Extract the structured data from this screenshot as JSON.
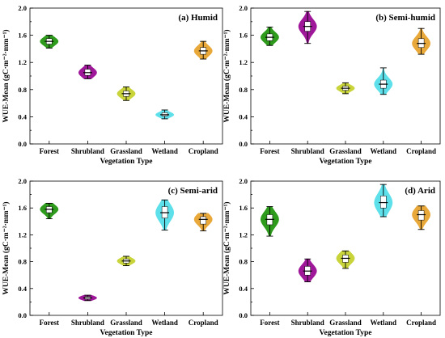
{
  "colors": {
    "Forest": "#2e9b1d",
    "Shrubland": "#a0189a",
    "Grassland": "#c8d43a",
    "Wetland": "#5ee0ea",
    "Cropland": "#e9a93a"
  },
  "chart_data": [
    {
      "type": "violin",
      "title": "(a) Humid",
      "xlabel": "Vegetation Type",
      "ylabel": "WUE-Mean (gC·m⁻²·mm⁻¹)",
      "ylim": [
        0.0,
        2.0
      ],
      "yticks": [
        "0.0",
        "0.4",
        "0.8",
        "1.2",
        "1.6",
        "2.0"
      ],
      "categories": [
        "Forest",
        "Shrubland",
        "Grassland",
        "Wetland",
        "Cropland"
      ],
      "values": [
        {
          "category": "Forest",
          "min": 1.41,
          "q1": 1.47,
          "median": 1.51,
          "q3": 1.55,
          "max": 1.6
        },
        {
          "category": "Shrubland",
          "min": 0.96,
          "q1": 1.01,
          "median": 1.05,
          "q3": 1.1,
          "max": 1.16
        },
        {
          "category": "Grassland",
          "min": 0.64,
          "q1": 0.7,
          "median": 0.74,
          "q3": 0.78,
          "max": 0.84
        },
        {
          "category": "Wetland",
          "min": 0.37,
          "q1": 0.41,
          "median": 0.43,
          "q3": 0.46,
          "max": 0.5
        },
        {
          "category": "Cropland",
          "min": 1.25,
          "q1": 1.32,
          "median": 1.37,
          "q3": 1.42,
          "max": 1.51
        }
      ]
    },
    {
      "type": "violin",
      "title": "(b) Semi-humid",
      "xlabel": "Vegetation Type",
      "ylabel": "WUE-Mean (gC·m⁻²·mm⁻¹)",
      "ylim": [
        0.0,
        2.0
      ],
      "yticks": [
        "0.0",
        "0.4",
        "0.8",
        "1.2",
        "1.6",
        "2.0"
      ],
      "categories": [
        "Forest",
        "Shrubland",
        "Grassland",
        "Wetland",
        "Cropland"
      ],
      "values": [
        {
          "category": "Forest",
          "min": 1.45,
          "q1": 1.52,
          "median": 1.57,
          "q3": 1.62,
          "max": 1.72
        },
        {
          "category": "Shrubland",
          "min": 1.48,
          "q1": 1.66,
          "median": 1.73,
          "q3": 1.8,
          "max": 1.95
        },
        {
          "category": "Grassland",
          "min": 0.74,
          "q1": 0.79,
          "median": 0.82,
          "q3": 0.85,
          "max": 0.9
        },
        {
          "category": "Wetland",
          "min": 0.73,
          "q1": 0.82,
          "median": 0.88,
          "q3": 0.94,
          "max": 1.12
        },
        {
          "category": "Cropland",
          "min": 1.32,
          "q1": 1.42,
          "median": 1.48,
          "q3": 1.55,
          "max": 1.7
        }
      ]
    },
    {
      "type": "violin",
      "title": "(c) Semi-arid",
      "xlabel": "Vegetation Type",
      "ylabel": "WUE-Mean (gC·m⁻²·mm⁻¹)",
      "ylim": [
        0.0,
        2.0
      ],
      "yticks": [
        "0.0",
        "0.4",
        "0.8",
        "1.2",
        "1.6",
        "2.0"
      ],
      "categories": [
        "Forest",
        "Shrubland",
        "Grassland",
        "Wetland",
        "Cropland"
      ],
      "values": [
        {
          "category": "Forest",
          "min": 1.44,
          "q1": 1.53,
          "median": 1.58,
          "q3": 1.62,
          "max": 1.67
        },
        {
          "category": "Shrubland",
          "min": 0.22,
          "q1": 0.24,
          "median": 0.26,
          "q3": 0.28,
          "max": 0.3
        },
        {
          "category": "Grassland",
          "min": 0.74,
          "q1": 0.78,
          "median": 0.81,
          "q3": 0.84,
          "max": 0.88
        },
        {
          "category": "Wetland",
          "min": 1.27,
          "q1": 1.45,
          "median": 1.53,
          "q3": 1.62,
          "max": 1.72
        },
        {
          "category": "Cropland",
          "min": 1.26,
          "q1": 1.36,
          "median": 1.43,
          "q3": 1.47,
          "max": 1.52
        }
      ]
    },
    {
      "type": "violin",
      "title": "(d) Arid",
      "xlabel": "Vegetation Type",
      "ylabel": "WUE-Mean (gC·m⁻²·mm⁻¹)",
      "ylim": [
        0.0,
        2.0
      ],
      "yticks": [
        "0.0",
        "0.4",
        "0.8",
        "1.2",
        "1.6",
        "2.0"
      ],
      "categories": [
        "Forest",
        "Shrubland",
        "Grassland",
        "Wetland",
        "Cropland"
      ],
      "values": [
        {
          "category": "Forest",
          "min": 1.18,
          "q1": 1.35,
          "median": 1.43,
          "q3": 1.5,
          "max": 1.62
        },
        {
          "category": "Shrubland",
          "min": 0.5,
          "q1": 0.6,
          "median": 0.66,
          "q3": 0.73,
          "max": 0.84
        },
        {
          "category": "Grassland",
          "min": 0.7,
          "q1": 0.79,
          "median": 0.85,
          "q3": 0.9,
          "max": 0.96
        },
        {
          "category": "Wetland",
          "min": 1.47,
          "q1": 1.6,
          "median": 1.68,
          "q3": 1.78,
          "max": 1.95
        },
        {
          "category": "Cropland",
          "min": 1.28,
          "q1": 1.42,
          "median": 1.5,
          "q3": 1.56,
          "max": 1.63
        }
      ]
    }
  ]
}
